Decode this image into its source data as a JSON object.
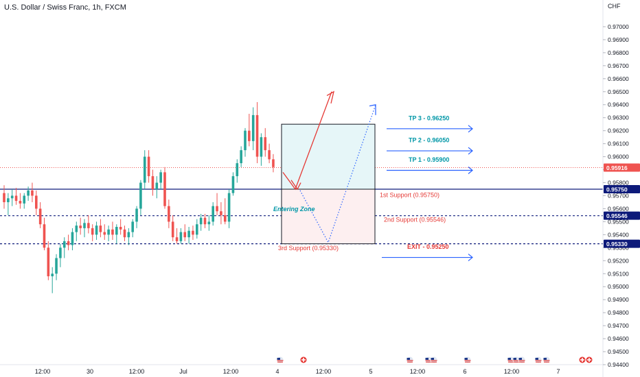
{
  "header": {
    "title": "U.S. Dollar / Swiss Franc, 1h, FXCM",
    "currency": "CHF"
  },
  "colors": {
    "bull": "#26a69a",
    "bear": "#ef5350",
    "blue": "#2962ff",
    "navy": "#0d1a7a",
    "red": "#e53935",
    "teal": "#0097a7",
    "tp_fill": "#e6f6f8",
    "entry_fill": "#fdeff0"
  },
  "chart_data": {
    "type": "candlestick",
    "ylim": [
      0.944,
      0.971
    ],
    "y_ticks": [
      "0.97000",
      "0.96900",
      "0.96800",
      "0.96700",
      "0.96600",
      "0.96500",
      "0.96400",
      "0.96300",
      "0.96200",
      "0.96100",
      "0.96000",
      "0.95900",
      "0.95800",
      "0.95700",
      "0.95600",
      "0.95500",
      "0.95400",
      "0.95300",
      "0.95200",
      "0.95100",
      "0.95000",
      "0.94900",
      "0.94800",
      "0.94700",
      "0.94600",
      "0.94500",
      "0.94400"
    ],
    "x_ticks": [
      "12:00",
      "30",
      "12:00",
      "Jul",
      "12:00",
      "4",
      "12:00",
      "5",
      "12:00",
      "6",
      "12:00",
      "7"
    ],
    "price_badges": [
      {
        "label": "0.95916",
        "value": 0.95916,
        "color": "#ef5350",
        "style": "dotted"
      },
      {
        "label": "0.95750",
        "value": 0.9575,
        "color": "#0d1a7a",
        "style": "solid"
      },
      {
        "label": "0.95546",
        "value": 0.95546,
        "color": "#0d1a7a",
        "style": "dashed"
      },
      {
        "label": "0.95330",
        "value": 0.9533,
        "color": "#0d1a7a",
        "style": "dashed"
      }
    ],
    "candles": [
      [
        0.9572,
        0.9578,
        0.956,
        0.9565
      ],
      [
        0.9565,
        0.9572,
        0.9555,
        0.9568
      ],
      [
        0.9568,
        0.9575,
        0.9562,
        0.957
      ],
      [
        0.957,
        0.9576,
        0.9563,
        0.9566
      ],
      [
        0.9566,
        0.9572,
        0.956,
        0.9564
      ],
      [
        0.9564,
        0.9572,
        0.956,
        0.957
      ],
      [
        0.957,
        0.9577,
        0.9566,
        0.9574
      ],
      [
        0.9574,
        0.958,
        0.9565,
        0.957
      ],
      [
        0.957,
        0.9574,
        0.9555,
        0.956
      ],
      [
        0.956,
        0.9565,
        0.9545,
        0.9548
      ],
      [
        0.9548,
        0.9553,
        0.9528,
        0.953
      ],
      [
        0.953,
        0.9535,
        0.9505,
        0.9508
      ],
      [
        0.9508,
        0.9515,
        0.9495,
        0.951
      ],
      [
        0.951,
        0.9525,
        0.9505,
        0.9522
      ],
      [
        0.9522,
        0.9533,
        0.9515,
        0.953
      ],
      [
        0.953,
        0.9538,
        0.9522,
        0.9535
      ],
      [
        0.9535,
        0.954,
        0.9528,
        0.9532
      ],
      [
        0.9532,
        0.9545,
        0.9528,
        0.9542
      ],
      [
        0.9542,
        0.955,
        0.9535,
        0.9547
      ],
      [
        0.9547,
        0.9553,
        0.954,
        0.9545
      ],
      [
        0.9545,
        0.9552,
        0.9538,
        0.9549
      ],
      [
        0.9549,
        0.9555,
        0.9541,
        0.9545
      ],
      [
        0.9545,
        0.9548,
        0.9535,
        0.954
      ],
      [
        0.954,
        0.955,
        0.9536,
        0.9547
      ],
      [
        0.9547,
        0.9552,
        0.9538,
        0.9542
      ],
      [
        0.9542,
        0.9548,
        0.9536,
        0.954
      ],
      [
        0.954,
        0.9547,
        0.9535,
        0.9544
      ],
      [
        0.9544,
        0.955,
        0.9536,
        0.954
      ],
      [
        0.954,
        0.9548,
        0.9533,
        0.9546
      ],
      [
        0.9546,
        0.9552,
        0.954,
        0.9544
      ],
      [
        0.9544,
        0.9547,
        0.9535,
        0.9538
      ],
      [
        0.9538,
        0.9545,
        0.9532,
        0.9542
      ],
      [
        0.9542,
        0.9552,
        0.9538,
        0.955
      ],
      [
        0.955,
        0.9562,
        0.9545,
        0.956
      ],
      [
        0.956,
        0.9582,
        0.9555,
        0.958
      ],
      [
        0.958,
        0.9605,
        0.9575,
        0.96
      ],
      [
        0.96,
        0.9605,
        0.958,
        0.9585
      ],
      [
        0.9585,
        0.959,
        0.957,
        0.9575
      ],
      [
        0.9575,
        0.9585,
        0.9568,
        0.958
      ],
      [
        0.958,
        0.959,
        0.9575,
        0.9588
      ],
      [
        0.9588,
        0.9592,
        0.956,
        0.9562
      ],
      [
        0.9562,
        0.9567,
        0.9545,
        0.955
      ],
      [
        0.955,
        0.9555,
        0.9535,
        0.9538
      ],
      [
        0.9538,
        0.9545,
        0.9533,
        0.9535
      ],
      [
        0.9535,
        0.9545,
        0.9533,
        0.9542
      ],
      [
        0.9542,
        0.9548,
        0.9535,
        0.9538
      ],
      [
        0.9538,
        0.9546,
        0.9533,
        0.9543
      ],
      [
        0.9543,
        0.9547,
        0.9536,
        0.954
      ],
      [
        0.954,
        0.9552,
        0.9537,
        0.9548
      ],
      [
        0.9548,
        0.9556,
        0.9543,
        0.9553
      ],
      [
        0.9553,
        0.9556,
        0.9545,
        0.9548
      ],
      [
        0.9548,
        0.9555,
        0.9543,
        0.955
      ],
      [
        0.955,
        0.9565,
        0.9547,
        0.9562
      ],
      [
        0.9562,
        0.9572,
        0.9555,
        0.9558
      ],
      [
        0.9558,
        0.9565,
        0.9548,
        0.9555
      ],
      [
        0.9555,
        0.9568,
        0.9548,
        0.955
      ],
      [
        0.955,
        0.9575,
        0.9545,
        0.9572
      ],
      [
        0.9572,
        0.9588,
        0.957,
        0.9585
      ],
      [
        0.9585,
        0.9598,
        0.958,
        0.9595
      ],
      [
        0.9595,
        0.9608,
        0.9592,
        0.9605
      ],
      [
        0.9605,
        0.9622,
        0.96,
        0.962
      ],
      [
        0.962,
        0.9633,
        0.9608,
        0.9612
      ],
      [
        0.9612,
        0.9638,
        0.9605,
        0.9632
      ],
      [
        0.9632,
        0.9642,
        0.9595,
        0.96
      ],
      [
        0.96,
        0.9618,
        0.9593,
        0.9615
      ],
      [
        0.9615,
        0.9622,
        0.96,
        0.9605
      ],
      [
        0.9605,
        0.961,
        0.9595,
        0.9598
      ],
      [
        0.9598,
        0.9602,
        0.9588,
        0.9592
      ]
    ],
    "annotations": {
      "tp3": {
        "label": "TP 3 - 0.96250",
        "value": 0.9625
      },
      "tp2": {
        "label": "TP 2 - 0.96050",
        "value": 0.9605
      },
      "tp1": {
        "label": "TP 1 - 0.95900",
        "value": 0.959
      },
      "support1": {
        "label": "1st Support (0.95750)",
        "value": 0.9575
      },
      "support2": {
        "label": "2nd Support (0.95546)",
        "value": 0.95546
      },
      "support3": {
        "label": "3rd Support (0.95330)",
        "value": 0.9533
      },
      "exit": {
        "label": "EXIT - 0.95250",
        "value": 0.9525
      },
      "entry_zone": {
        "label": "Entering Zone",
        "value": 0.9565
      }
    },
    "event_markers": [
      "us-flag",
      "swiss-flag",
      "us-flag",
      "us-flag",
      "us-flag",
      "us-flag",
      "us-flag",
      "us-flag",
      "us-flag",
      "us-flag",
      "us-flag",
      "swiss-flag",
      "swiss-flag"
    ]
  }
}
